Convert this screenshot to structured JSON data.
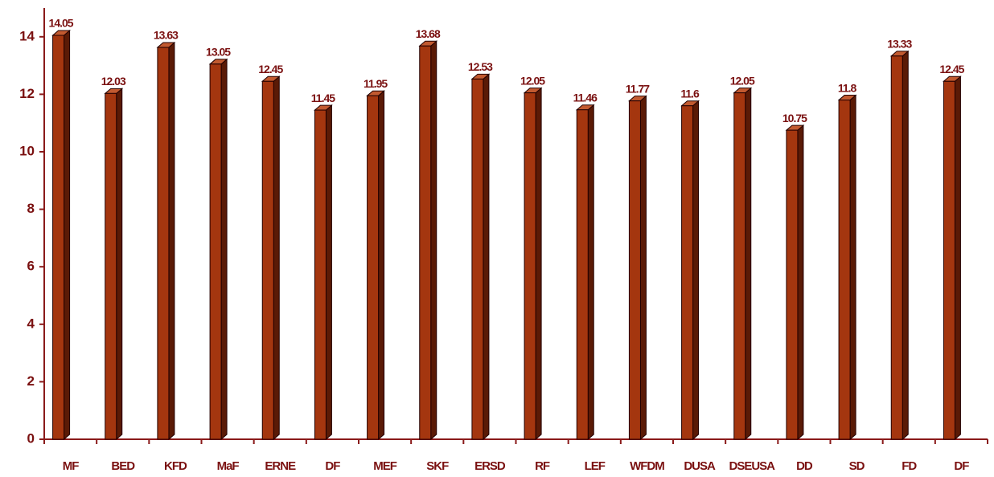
{
  "chart_data": {
    "type": "bar",
    "categories": [
      "MF",
      "BED",
      "KFD",
      "MaF",
      "ERNE",
      "DF",
      "MEF",
      "SKF",
      "ERSD",
      "RF",
      "LEF",
      "WFDM",
      "DUSA",
      "DSEUSA",
      "DD",
      "SD",
      "FD",
      "DF"
    ],
    "values": [
      14.05,
      12.03,
      13.63,
      13.05,
      12.45,
      11.45,
      11.95,
      13.68,
      12.53,
      12.05,
      11.46,
      11.77,
      11.6,
      12.05,
      10.75,
      11.8,
      13.33,
      12.45
    ],
    "color": "#a4360f",
    "ylim": [
      0,
      15
    ],
    "yticks": [
      0,
      2,
      4,
      6,
      8,
      10,
      12,
      14
    ],
    "grid": false
  }
}
